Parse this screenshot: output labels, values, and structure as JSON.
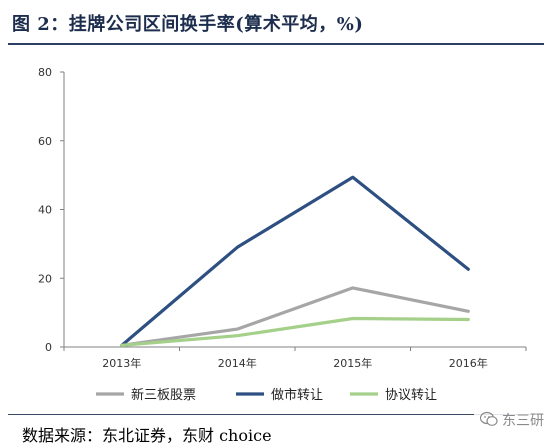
{
  "header": {
    "title": "图 2：挂牌公司区间换手率(算术平均，%)"
  },
  "footer": {
    "source": "数据来源：东北证券，东财 choice"
  },
  "watermark": {
    "text": "东三研",
    "icon": "wechat-icon"
  },
  "chart_data": {
    "type": "line",
    "categories": [
      "2013年",
      "2014年",
      "2015年",
      "2016年"
    ],
    "ylim": [
      0,
      80
    ],
    "yticks": [
      "0",
      "20",
      "40",
      "60",
      "80"
    ],
    "grid": false,
    "legend_position": "bottom",
    "series": [
      {
        "name": "新三板股票",
        "color": "#a6a6a6",
        "values": [
          0.5,
          5.2,
          17.2,
          10.4
        ]
      },
      {
        "name": "做市转让",
        "color": "#2e4f82",
        "values": [
          0.5,
          29.0,
          49.4,
          22.6
        ]
      },
      {
        "name": "协议转让",
        "color": "#a4d08a",
        "values": [
          0.5,
          3.3,
          8.3,
          8.0
        ]
      }
    ]
  }
}
